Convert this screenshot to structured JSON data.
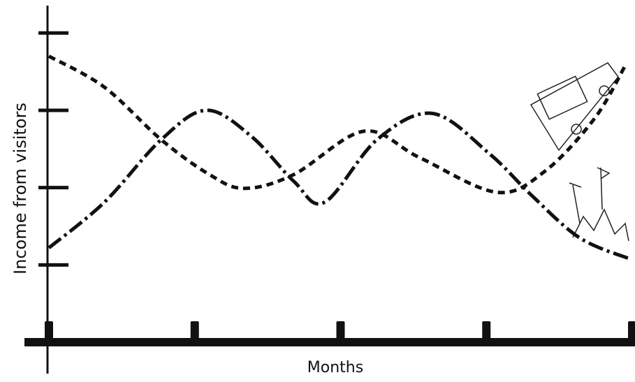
{
  "chart_data": {
    "type": "line",
    "x_label": "Months",
    "y_label": "Income from visitors",
    "xlim": [
      0,
      4
    ],
    "xticks": [
      0,
      1,
      2,
      3,
      4
    ],
    "ylim": [
      0,
      4.4
    ],
    "yticks": [
      1,
      2,
      3,
      4
    ],
    "series": [
      {
        "color": "#111111",
        "style": "dashed",
        "x": [
          0,
          0.38,
          0.77,
          1.1,
          1.34,
          1.68,
          2.16,
          2.54,
          3.07,
          3.4,
          3.74,
          3.95
        ],
        "values": [
          3.7,
          3.3,
          2.62,
          2.17,
          1.99,
          2.17,
          2.73,
          2.39,
          1.94,
          2.21,
          2.89,
          3.57
        ]
      },
      {
        "color": "#111111",
        "style": "dashdot",
        "x": [
          0,
          0.38,
          0.77,
          1.08,
          1.39,
          1.68,
          1.89,
          2.25,
          2.63,
          3.02,
          3.31,
          3.64,
          3.98
        ],
        "values": [
          1.22,
          1.81,
          2.62,
          3.0,
          2.66,
          2.08,
          1.81,
          2.62,
          2.96,
          2.44,
          1.9,
          1.35,
          1.08
        ]
      }
    ]
  }
}
